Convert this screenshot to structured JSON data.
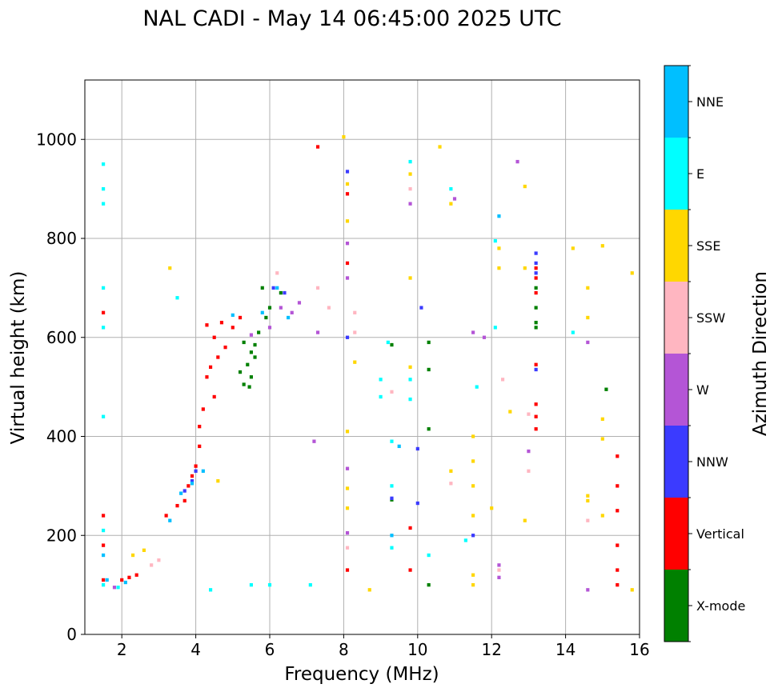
{
  "chart_data": {
    "type": "scatter",
    "title": "NAL CADI - May 14 06:45:00 2025 UTC",
    "xlabel": "Frequency (MHz)",
    "ylabel": "Virtual height (km)",
    "xlim": [
      1,
      16
    ],
    "ylim": [
      0,
      1120
    ],
    "grid": true,
    "x_ticks": [
      2,
      4,
      6,
      8,
      10,
      12,
      14,
      16
    ],
    "x_tick_labels": [
      "2",
      "4",
      "6",
      "8",
      "10",
      "12",
      "14",
      "16"
    ],
    "y_ticks": [
      0,
      200,
      400,
      600,
      800,
      1000
    ],
    "y_tick_labels": [
      "0",
      "200",
      "400",
      "600",
      "800",
      "1000"
    ],
    "colorbar": {
      "label": "Azimuth Direction",
      "categories": [
        "X-mode",
        "Vertical",
        "NNW",
        "W",
        "SSW",
        "SSE",
        "E",
        "NNE"
      ],
      "colors": [
        "#008000",
        "#ff0000",
        "#3b3bff",
        "#b455d6",
        "#ffb6c1",
        "#ffd700",
        "#00ffff",
        "#00bfff"
      ]
    },
    "series": [
      {
        "name": "X-mode",
        "points": [
          [
            5.3,
            590
          ],
          [
            5.5,
            570
          ],
          [
            5.4,
            545
          ],
          [
            5.6,
            560
          ],
          [
            5.2,
            530
          ],
          [
            5.5,
            520
          ],
          [
            5.7,
            610
          ],
          [
            5.9,
            640
          ],
          [
            5.3,
            505
          ],
          [
            5.45,
            500
          ],
          [
            5.6,
            585
          ],
          [
            6.0,
            660
          ],
          [
            6.3,
            690
          ],
          [
            5.8,
            700
          ],
          [
            13.2,
            620
          ],
          [
            13.2,
            630
          ],
          [
            13.2,
            700
          ],
          [
            15.1,
            495
          ],
          [
            10.3,
            590
          ],
          [
            10.3,
            535
          ],
          [
            9.3,
            585
          ],
          [
            9.3,
            272
          ],
          [
            10.3,
            100
          ],
          [
            10.3,
            415
          ],
          [
            13.2,
            660
          ]
        ]
      },
      {
        "name": "Vertical",
        "points": [
          [
            2.0,
            110
          ],
          [
            2.2,
            115
          ],
          [
            2.4,
            120
          ],
          [
            3.2,
            240
          ],
          [
            3.5,
            260
          ],
          [
            3.7,
            270
          ],
          [
            3.8,
            300
          ],
          [
            3.9,
            320
          ],
          [
            4.0,
            340
          ],
          [
            4.1,
            380
          ],
          [
            4.1,
            420
          ],
          [
            4.2,
            455
          ],
          [
            4.3,
            520
          ],
          [
            4.4,
            540
          ],
          [
            4.5,
            480
          ],
          [
            4.6,
            560
          ],
          [
            4.8,
            580
          ],
          [
            4.3,
            625
          ],
          [
            4.7,
            630
          ],
          [
            5.0,
            620
          ],
          [
            5.2,
            640
          ],
          [
            4.5,
            600
          ],
          [
            1.5,
            650
          ],
          [
            1.5,
            240
          ],
          [
            1.5,
            180
          ],
          [
            1.5,
            110
          ],
          [
            7.3,
            985
          ],
          [
            8.1,
            890
          ],
          [
            8.1,
            750
          ],
          [
            8.1,
            130
          ],
          [
            9.8,
            215
          ],
          [
            9.8,
            130
          ],
          [
            13.2,
            440
          ],
          [
            13.2,
            465
          ],
          [
            13.2,
            415
          ],
          [
            13.2,
            545
          ],
          [
            13.2,
            740
          ],
          [
            13.2,
            720
          ],
          [
            13.2,
            690
          ],
          [
            15.4,
            130
          ],
          [
            15.4,
            100
          ],
          [
            15.4,
            180
          ],
          [
            15.4,
            250
          ],
          [
            15.4,
            300
          ],
          [
            15.4,
            360
          ]
        ]
      },
      {
        "name": "NNW",
        "points": [
          [
            3.7,
            290
          ],
          [
            3.9,
            310
          ],
          [
            4.0,
            330
          ],
          [
            6.1,
            700
          ],
          [
            6.4,
            690
          ],
          [
            10.1,
            660
          ],
          [
            10.0,
            375
          ],
          [
            8.1,
            935
          ],
          [
            11.5,
            200
          ],
          [
            13.2,
            770
          ],
          [
            13.2,
            535
          ],
          [
            13.2,
            750
          ],
          [
            13.2,
            730
          ],
          [
            9.3,
            275
          ],
          [
            8.1,
            600
          ],
          [
            10.0,
            265
          ]
        ]
      },
      {
        "name": "W",
        "points": [
          [
            1.8,
            95
          ],
          [
            5.5,
            605
          ],
          [
            6.0,
            620
          ],
          [
            6.3,
            660
          ],
          [
            6.6,
            650
          ],
          [
            6.8,
            670
          ],
          [
            7.2,
            390
          ],
          [
            7.3,
            610
          ],
          [
            8.1,
            335
          ],
          [
            8.1,
            205
          ],
          [
            8.1,
            790
          ],
          [
            9.8,
            870
          ],
          [
            11.0,
            880
          ],
          [
            11.5,
            610
          ],
          [
            12.7,
            955
          ],
          [
            14.6,
            590
          ],
          [
            14.6,
            90
          ],
          [
            13.0,
            370
          ],
          [
            11.8,
            600
          ],
          [
            12.2,
            140
          ],
          [
            12.2,
            115
          ],
          [
            8.1,
            720
          ]
        ]
      },
      {
        "name": "SSW",
        "points": [
          [
            3.0,
            150
          ],
          [
            2.8,
            140
          ],
          [
            6.2,
            730
          ],
          [
            7.3,
            700
          ],
          [
            8.1,
            175
          ],
          [
            8.3,
            650
          ],
          [
            9.3,
            490
          ],
          [
            9.8,
            900
          ],
          [
            10.9,
            305
          ],
          [
            12.3,
            515
          ],
          [
            13.0,
            330
          ],
          [
            13.0,
            445
          ],
          [
            14.6,
            230
          ],
          [
            12.2,
            130
          ],
          [
            8.3,
            610
          ],
          [
            7.6,
            660
          ]
        ]
      },
      {
        "name": "SSE",
        "points": [
          [
            2.3,
            160
          ],
          [
            2.6,
            170
          ],
          [
            3.3,
            740
          ],
          [
            4.6,
            310
          ],
          [
            8.0,
            1005
          ],
          [
            8.1,
            910
          ],
          [
            8.1,
            835
          ],
          [
            8.1,
            410
          ],
          [
            8.1,
            295
          ],
          [
            8.1,
            255
          ],
          [
            8.3,
            550
          ],
          [
            8.7,
            90
          ],
          [
            9.8,
            930
          ],
          [
            9.8,
            720
          ],
          [
            9.8,
            540
          ],
          [
            10.6,
            985
          ],
          [
            10.9,
            870
          ],
          [
            11.5,
            400
          ],
          [
            11.5,
            350
          ],
          [
            11.5,
            300
          ],
          [
            11.5,
            240
          ],
          [
            11.5,
            100
          ],
          [
            11.5,
            120
          ],
          [
            12.2,
            780
          ],
          [
            12.2,
            740
          ],
          [
            12.5,
            450
          ],
          [
            12.9,
            905
          ],
          [
            12.9,
            740
          ],
          [
            12.9,
            230
          ],
          [
            14.2,
            780
          ],
          [
            14.6,
            700
          ],
          [
            14.6,
            640
          ],
          [
            14.6,
            280
          ],
          [
            14.6,
            270
          ],
          [
            15.0,
            785
          ],
          [
            15.0,
            435
          ],
          [
            15.0,
            395
          ],
          [
            15.0,
            240
          ],
          [
            15.8,
            730
          ],
          [
            15.8,
            90
          ],
          [
            12.0,
            255
          ],
          [
            10.9,
            330
          ]
        ]
      },
      {
        "name": "E",
        "points": [
          [
            1.5,
            950
          ],
          [
            1.5,
            900
          ],
          [
            1.5,
            870
          ],
          [
            1.5,
            700
          ],
          [
            1.5,
            620
          ],
          [
            1.5,
            440
          ],
          [
            1.5,
            210
          ],
          [
            1.5,
            100
          ],
          [
            1.9,
            95
          ],
          [
            3.5,
            680
          ],
          [
            4.4,
            90
          ],
          [
            5.5,
            100
          ],
          [
            6.0,
            100
          ],
          [
            7.1,
            100
          ],
          [
            9.0,
            515
          ],
          [
            9.2,
            590
          ],
          [
            9.3,
            390
          ],
          [
            9.3,
            300
          ],
          [
            9.3,
            175
          ],
          [
            9.8,
            955
          ],
          [
            9.8,
            515
          ],
          [
            9.8,
            475
          ],
          [
            10.9,
            900
          ],
          [
            11.3,
            190
          ],
          [
            11.6,
            500
          ],
          [
            12.1,
            620
          ],
          [
            12.1,
            795
          ],
          [
            14.2,
            610
          ],
          [
            10.3,
            160
          ],
          [
            9.0,
            480
          ]
        ]
      },
      {
        "name": "NNE",
        "points": [
          [
            1.5,
            160
          ],
          [
            1.6,
            110
          ],
          [
            2.1,
            105
          ],
          [
            3.3,
            230
          ],
          [
            3.6,
            285
          ],
          [
            3.9,
            305
          ],
          [
            4.2,
            330
          ],
          [
            5.0,
            645
          ],
          [
            5.8,
            650
          ],
          [
            6.2,
            700
          ],
          [
            6.5,
            640
          ],
          [
            9.3,
            200
          ],
          [
            9.5,
            380
          ],
          [
            12.2,
            845
          ]
        ]
      }
    ]
  }
}
